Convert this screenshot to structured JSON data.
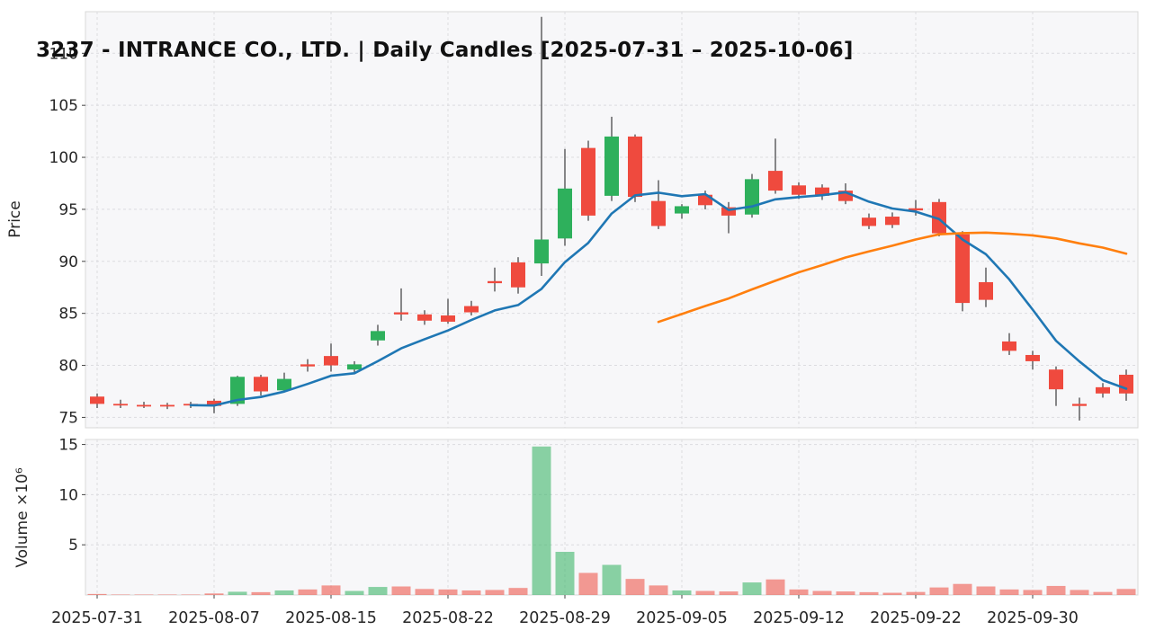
{
  "chart_data": {
    "type": "candlestick",
    "title": "3237 - INTRANCE CO., LTD. | Daily Candles [2025-07-31 – 2025-10-06]",
    "ylabel": "Price",
    "ylabel_volume": "Volume ×10⁶",
    "price_ylim": [
      74,
      114
    ],
    "price_ticks": [
      75,
      80,
      85,
      90,
      95,
      100,
      105,
      110
    ],
    "volume_ylim": [
      0,
      15.5
    ],
    "volume_ticks": [
      5,
      10,
      15
    ],
    "x_tick_dates": [
      "2025-07-31",
      "2025-08-07",
      "2025-08-15",
      "2025-08-22",
      "2025-08-29",
      "2025-09-05",
      "2025-09-12",
      "2025-09-22",
      "2025-09-30"
    ],
    "grid": true,
    "legend": "none",
    "colors": {
      "up": "#2eb05c",
      "down": "#ef4a3e",
      "wick": "#3c3c3c",
      "volume_opacity": 0.55,
      "ma_fast": "#1f77b4",
      "ma_slow": "#ff7f0e",
      "panel_bg": "#f7f7f9",
      "grid_line": "#dcdce0",
      "spine": "#d8d8d8"
    },
    "overlays": [
      {
        "name": "SMA5",
        "window": 5,
        "color": "#1f77b4"
      },
      {
        "name": "SMA25",
        "window": 25,
        "color": "#ff7f0e"
      }
    ],
    "candles": [
      {
        "date": "2025-07-31",
        "open": 77.0,
        "high": 77.3,
        "low": 75.9,
        "close": 76.3,
        "volume": 0.1
      },
      {
        "date": "2025-08-01",
        "open": 76.3,
        "high": 76.7,
        "low": 75.9,
        "close": 76.2,
        "volume": 0.04
      },
      {
        "date": "2025-08-04",
        "open": 76.2,
        "high": 76.5,
        "low": 75.9,
        "close": 76.1,
        "volume": 0.03
      },
      {
        "date": "2025-08-05",
        "open": 76.2,
        "high": 76.4,
        "low": 75.8,
        "close": 76.1,
        "volume": 0.03
      },
      {
        "date": "2025-08-06",
        "open": 76.3,
        "high": 76.5,
        "low": 75.9,
        "close": 76.2,
        "volume": 0.04
      },
      {
        "date": "2025-08-07",
        "open": 76.6,
        "high": 76.8,
        "low": 75.4,
        "close": 76.1,
        "volume": 0.15
      },
      {
        "date": "2025-08-08",
        "open": 76.3,
        "high": 79.0,
        "low": 76.1,
        "close": 78.9,
        "volume": 0.32
      },
      {
        "date": "2025-08-12",
        "open": 78.9,
        "high": 79.1,
        "low": 77.1,
        "close": 77.5,
        "volume": 0.28
      },
      {
        "date": "2025-08-13",
        "open": 77.6,
        "high": 79.3,
        "low": 77.4,
        "close": 78.7,
        "volume": 0.45
      },
      {
        "date": "2025-08-14",
        "open": 80.1,
        "high": 80.6,
        "low": 79.4,
        "close": 79.9,
        "volume": 0.55
      },
      {
        "date": "2025-08-15",
        "open": 80.9,
        "high": 82.1,
        "low": 79.4,
        "close": 80.0,
        "volume": 0.95
      },
      {
        "date": "2025-08-18",
        "open": 79.6,
        "high": 80.4,
        "low": 79.2,
        "close": 80.1,
        "volume": 0.4
      },
      {
        "date": "2025-08-19",
        "open": 82.4,
        "high": 83.9,
        "low": 81.9,
        "close": 83.3,
        "volume": 0.8
      },
      {
        "date": "2025-08-20",
        "open": 85.1,
        "high": 87.4,
        "low": 84.3,
        "close": 84.9,
        "volume": 0.85
      },
      {
        "date": "2025-08-21",
        "open": 84.9,
        "high": 85.3,
        "low": 83.9,
        "close": 84.3,
        "volume": 0.6
      },
      {
        "date": "2025-08-22",
        "open": 84.8,
        "high": 86.4,
        "low": 84.0,
        "close": 84.2,
        "volume": 0.55
      },
      {
        "date": "2025-08-25",
        "open": 85.7,
        "high": 86.2,
        "low": 84.8,
        "close": 85.1,
        "volume": 0.45
      },
      {
        "date": "2025-08-26",
        "open": 88.1,
        "high": 89.4,
        "low": 87.1,
        "close": 87.9,
        "volume": 0.5
      },
      {
        "date": "2025-08-27",
        "open": 89.9,
        "high": 90.4,
        "low": 86.9,
        "close": 87.5,
        "volume": 0.7
      },
      {
        "date": "2025-08-28",
        "open": 89.8,
        "high": 113.5,
        "low": 88.6,
        "close": 92.1,
        "volume": 14.8
      },
      {
        "date": "2025-08-29",
        "open": 92.2,
        "high": 100.8,
        "low": 91.5,
        "close": 97.0,
        "volume": 4.3
      },
      {
        "date": "2025-09-01",
        "open": 100.9,
        "high": 101.6,
        "low": 93.9,
        "close": 94.4,
        "volume": 2.2
      },
      {
        "date": "2025-09-02",
        "open": 96.3,
        "high": 103.9,
        "low": 95.8,
        "close": 102.0,
        "volume": 3.0
      },
      {
        "date": "2025-09-03",
        "open": 102.0,
        "high": 102.2,
        "low": 95.7,
        "close": 96.2,
        "volume": 1.6
      },
      {
        "date": "2025-09-04",
        "open": 95.8,
        "high": 97.8,
        "low": 93.1,
        "close": 93.4,
        "volume": 0.95
      },
      {
        "date": "2025-09-05",
        "open": 94.6,
        "high": 95.5,
        "low": 94.1,
        "close": 95.3,
        "volume": 0.45
      },
      {
        "date": "2025-09-08",
        "open": 96.4,
        "high": 96.8,
        "low": 95.0,
        "close": 95.4,
        "volume": 0.4
      },
      {
        "date": "2025-09-09",
        "open": 95.2,
        "high": 95.7,
        "low": 92.7,
        "close": 94.4,
        "volume": 0.35
      },
      {
        "date": "2025-09-10",
        "open": 94.5,
        "high": 98.4,
        "low": 94.2,
        "close": 97.9,
        "volume": 1.25
      },
      {
        "date": "2025-09-11",
        "open": 98.7,
        "high": 101.8,
        "low": 96.5,
        "close": 96.8,
        "volume": 1.55
      },
      {
        "date": "2025-09-12",
        "open": 97.3,
        "high": 97.6,
        "low": 96.0,
        "close": 96.4,
        "volume": 0.55
      },
      {
        "date": "2025-09-16",
        "open": 97.1,
        "high": 97.4,
        "low": 95.9,
        "close": 96.3,
        "volume": 0.4
      },
      {
        "date": "2025-09-17",
        "open": 96.8,
        "high": 97.5,
        "low": 95.5,
        "close": 95.8,
        "volume": 0.35
      },
      {
        "date": "2025-09-18",
        "open": 94.2,
        "high": 94.6,
        "low": 93.1,
        "close": 93.4,
        "volume": 0.28
      },
      {
        "date": "2025-09-19",
        "open": 94.3,
        "high": 94.7,
        "low": 93.2,
        "close": 93.5,
        "volume": 0.22
      },
      {
        "date": "2025-09-22",
        "open": 95.1,
        "high": 95.9,
        "low": 94.4,
        "close": 94.9,
        "volume": 0.3
      },
      {
        "date": "2025-09-24",
        "open": 95.7,
        "high": 96.0,
        "low": 92.4,
        "close": 92.7,
        "volume": 0.75
      },
      {
        "date": "2025-09-25",
        "open": 92.6,
        "high": 92.9,
        "low": 85.2,
        "close": 86.0,
        "volume": 1.1
      },
      {
        "date": "2025-09-26",
        "open": 88.0,
        "high": 89.4,
        "low": 85.6,
        "close": 86.3,
        "volume": 0.85
      },
      {
        "date": "2025-09-29",
        "open": 82.3,
        "high": 83.1,
        "low": 81.0,
        "close": 81.4,
        "volume": 0.55
      },
      {
        "date": "2025-09-30",
        "open": 81.0,
        "high": 81.4,
        "low": 79.6,
        "close": 80.4,
        "volume": 0.5
      },
      {
        "date": "2025-10-01",
        "open": 79.6,
        "high": 79.9,
        "low": 76.1,
        "close": 77.7,
        "volume": 0.9
      },
      {
        "date": "2025-10-02",
        "open": 76.3,
        "high": 76.9,
        "low": 74.7,
        "close": 76.1,
        "volume": 0.5
      },
      {
        "date": "2025-10-03",
        "open": 77.9,
        "high": 78.3,
        "low": 76.9,
        "close": 77.3,
        "volume": 0.3
      },
      {
        "date": "2025-10-06",
        "open": 79.1,
        "high": 79.6,
        "low": 76.6,
        "close": 77.3,
        "volume": 0.6
      }
    ]
  }
}
